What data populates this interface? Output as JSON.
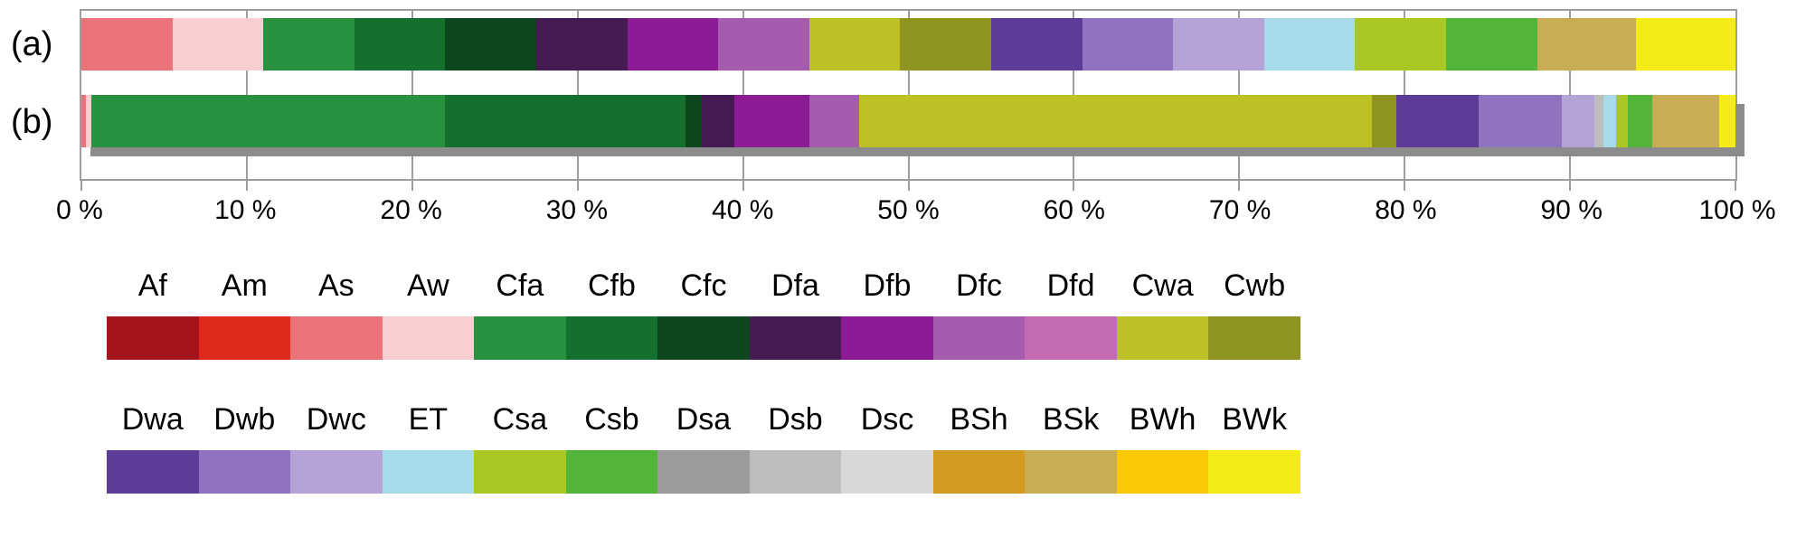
{
  "chart_data": {
    "type": "bar",
    "subtype": "horizontal-stacked-percentage",
    "title": "",
    "xlabel": "",
    "ylabel": "",
    "grid": true,
    "x_axis": {
      "min": 0,
      "max": 100,
      "tick_step": 10,
      "unit": "%",
      "tick_labels": [
        "0 %",
        "10 %",
        "20 %",
        "30 %",
        "40 %",
        "50 %",
        "60 %",
        "70 %",
        "80 %",
        "90 %",
        "100 %"
      ]
    },
    "series": [
      {
        "label": "(a)",
        "segments": [
          {
            "code": "As",
            "value": 5.5
          },
          {
            "code": "Aw",
            "value": 5.5
          },
          {
            "code": "Cfa",
            "value": 5.5
          },
          {
            "code": "Cfb",
            "value": 5.5
          },
          {
            "code": "Cfc",
            "value": 5.5
          },
          {
            "code": "Dfa",
            "value": 5.5
          },
          {
            "code": "Dfb",
            "value": 5.5
          },
          {
            "code": "Dfc",
            "value": 5.5
          },
          {
            "code": "Cwa",
            "value": 5.5
          },
          {
            "code": "Cwb",
            "value": 5.5
          },
          {
            "code": "Dwa",
            "value": 5.5
          },
          {
            "code": "Dwb",
            "value": 5.5
          },
          {
            "code": "Dwc",
            "value": 5.5
          },
          {
            "code": "ET",
            "value": 5.5
          },
          {
            "code": "Csa",
            "value": 5.5
          },
          {
            "code": "Csb",
            "value": 5.5
          },
          {
            "code": "BSk",
            "value": 6.0
          },
          {
            "code": "BWk",
            "value": 6.0
          }
        ]
      },
      {
        "label": "(b)",
        "segments": [
          {
            "code": "As",
            "value": 0.3
          },
          {
            "code": "Aw",
            "value": 0.3
          },
          {
            "code": "Cfa",
            "value": 21.4
          },
          {
            "code": "Cfb",
            "value": 14.5
          },
          {
            "code": "Cfc",
            "value": 1.0
          },
          {
            "code": "Dfa",
            "value": 2.0
          },
          {
            "code": "Dfb",
            "value": 4.5
          },
          {
            "code": "Dfc",
            "value": 3.0
          },
          {
            "code": "Cwa",
            "value": 31.0
          },
          {
            "code": "Cwb",
            "value": 1.5
          },
          {
            "code": "Dwa",
            "value": 5.0
          },
          {
            "code": "Dwb",
            "value": 5.0
          },
          {
            "code": "Dwc",
            "value": 2.0
          },
          {
            "code": "Dsb",
            "value": 0.5
          },
          {
            "code": "ET",
            "value": 0.8
          },
          {
            "code": "Csa",
            "value": 0.7
          },
          {
            "code": "Csb",
            "value": 1.5
          },
          {
            "code": "BSk",
            "value": 4.0
          },
          {
            "code": "BWk",
            "value": 1.0
          }
        ]
      }
    ],
    "legend": {
      "position": "bottom",
      "rows": [
        [
          "Af",
          "Am",
          "As",
          "Aw",
          "Cfa",
          "Cfb",
          "Cfc",
          "Dfa",
          "Dfb",
          "Dfc",
          "Dfd",
          "Cwa",
          "Cwb"
        ],
        [
          "Dwa",
          "Dwb",
          "Dwc",
          "ET",
          "Csa",
          "Csb",
          "Dsa",
          "Dsb",
          "Dsc",
          "BSh",
          "BSk",
          "BWh",
          "BWk"
        ]
      ]
    },
    "colors": {
      "Af": "#a6141b",
      "Am": "#df2a1b",
      "As": "#ea7279",
      "Aw": "#f8ced1",
      "Cfa": "#27913e",
      "Cfb": "#14702d",
      "Cfc": "#0e461f",
      "Dfa": "#461a53",
      "Dfb": "#8c1c95",
      "Dfc": "#a55cae",
      "Dfd": "#c46ab3",
      "Cwa": "#bcc125",
      "Cwb": "#8f941e",
      "Dwa": "#5c3b99",
      "Dwb": "#8f72c0",
      "Dwc": "#b5a2d7",
      "ET": "#a7dbea",
      "Csa": "#a9c823",
      "Csb": "#53b43a",
      "Dsa": "#9b9b9b",
      "Dsb": "#bdbdbd",
      "Dsc": "#d8d8d8",
      "BSh": "#d39b1f",
      "BSk": "#c8ad55",
      "BWh": "#fac805",
      "BWk": "#f5eb16"
    },
    "gridline_color": "#9e9e9e",
    "shadow_color": "#8c8c8c",
    "background_color": "#ffffff"
  }
}
